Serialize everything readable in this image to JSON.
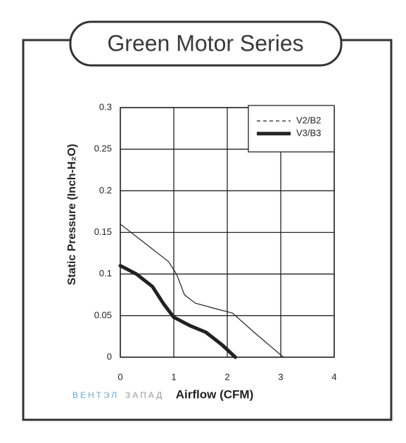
{
  "chart_data": {
    "type": "line",
    "title": "Green Motor Series",
    "x_label": "Airflow (CFM)",
    "y_label": "Static Pressure (Inch-H₂O)",
    "watermark": [
      "ВЕНТЭЛ",
      "ЗАПАД"
    ],
    "xlim": [
      0,
      4
    ],
    "xticks": [
      0,
      1,
      2,
      3,
      4
    ],
    "ylim": [
      0,
      0.3
    ],
    "yticks": [
      0,
      0.05,
      0.1,
      0.15,
      0.2,
      0.25,
      0.3
    ],
    "grid": true,
    "legend": "upper right",
    "series": [
      {
        "name": "V2/B2",
        "color": "#222222",
        "line_width": 1.2,
        "legend_line": "dashed",
        "x": [
          0,
          0.5,
          0.9,
          1.05,
          1.2,
          1.4,
          1.8,
          2.1,
          2.5,
          3.05
        ],
        "values": [
          0.16,
          0.135,
          0.115,
          0.1,
          0.075,
          0.065,
          0.058,
          0.053,
          0.03,
          0
        ]
      },
      {
        "name": "V3/B3",
        "color": "#222222",
        "line_width": 5,
        "legend_line": "solid",
        "x": [
          0,
          0.3,
          0.6,
          0.8,
          1.0,
          1.3,
          1.6,
          1.9,
          2.15
        ],
        "values": [
          0.11,
          0.1,
          0.085,
          0.065,
          0.048,
          0.038,
          0.03,
          0.015,
          0
        ]
      }
    ]
  }
}
